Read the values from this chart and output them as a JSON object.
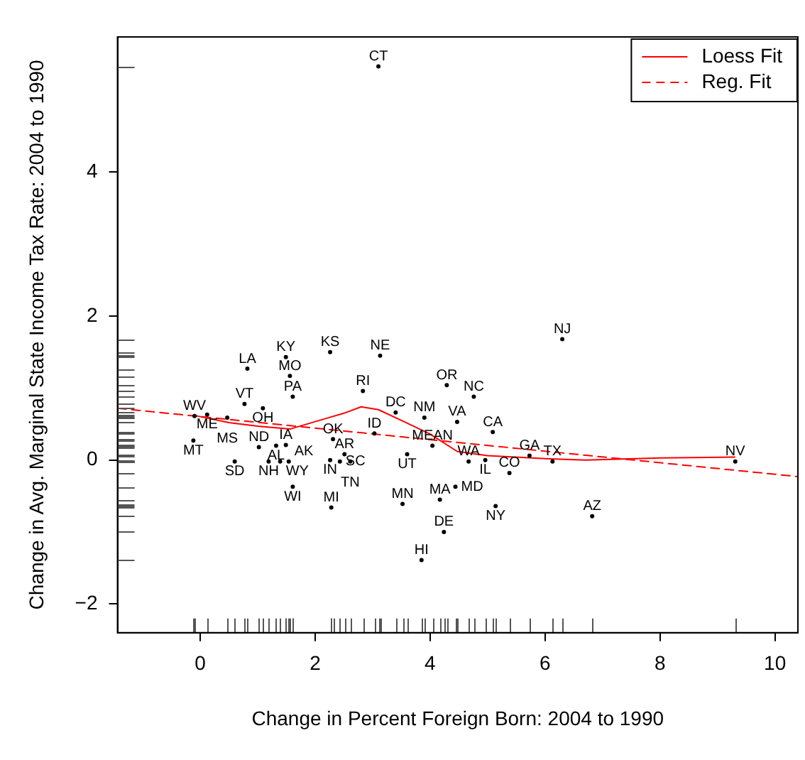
{
  "chart_data": {
    "type": "scatter",
    "xlabel": "Change in Percent Foreign Born: 2004 to 1990",
    "ylabel": "Change in Avg. Marginal State Income Tax Rate: 2004 to 1990",
    "xlim": [
      -1.44,
      10.4
    ],
    "ylim": [
      -2.4,
      5.88
    ],
    "xticks": [
      0,
      2,
      4,
      6,
      8,
      10
    ],
    "yticks": [
      -2,
      0,
      2,
      4
    ],
    "grid": false,
    "legend": "top right",
    "series": [
      {
        "color": "#000000",
        "x": [
          3.1,
          6.3,
          0.82,
          1.49,
          2.26,
          3.13,
          1.56,
          1.61,
          2.83,
          4.29,
          4.76,
          0.77,
          1.09,
          3.4,
          3.9,
          4.47,
          -0.1,
          0.12,
          0.47,
          -0.12,
          5.09,
          3.03,
          2.31,
          1.02,
          1.32,
          1.49,
          4.04,
          3.6,
          2.51,
          0.6,
          1.19,
          1.39,
          1.54,
          2.26,
          2.43,
          2.61,
          4.67,
          4.96,
          5.73,
          6.13,
          9.31,
          5.38,
          1.61,
          2.28,
          3.52,
          4.17,
          4.44,
          5.14,
          6.82,
          4.24,
          3.85
        ],
        "values": [
          5.47,
          1.68,
          1.27,
          1.43,
          1.5,
          1.45,
          1.17,
          0.88,
          0.96,
          1.04,
          0.88,
          0.78,
          0.72,
          0.66,
          0.59,
          0.53,
          0.61,
          0.63,
          0.59,
          0.27,
          0.39,
          0.37,
          0.29,
          0.18,
          0.2,
          0.21,
          0.2,
          0.08,
          0.08,
          -0.02,
          -0.02,
          -0.02,
          -0.02,
          0.0,
          -0.02,
          -0.02,
          -0.02,
          0.0,
          0.06,
          -0.02,
          -0.02,
          -0.18,
          -0.37,
          -0.66,
          -0.61,
          -0.55,
          -0.37,
          -0.64,
          -0.78,
          -1.0,
          -1.39
        ],
        "value_labels": [
          "CT",
          "NJ",
          "LA",
          "KY",
          "KS",
          "NE",
          "MO",
          "PA",
          "RI",
          "OR",
          "NC",
          "VT",
          "OH",
          "DC",
          "NM",
          "VA",
          "WV",
          "ME",
          "MS",
          "MT",
          "CA",
          "ID",
          "OK",
          "ND",
          "AL",
          "IA",
          "MEAN",
          "UT",
          "AR",
          "SD",
          "NH",
          "WY",
          "AK",
          "IN",
          "SC",
          "TN",
          "WA",
          "IL",
          "GA",
          "TX",
          "NV",
          "CO",
          "WI",
          "MI",
          "MN",
          "MA",
          "MD",
          "NY",
          "AZ",
          "DE",
          "HI"
        ]
      },
      {
        "type": "line",
        "name": "Loess Fit",
        "color": "#ff0000",
        "line_style": "solid",
        "x": [
          -0.1,
          0.5,
          1.0,
          1.56,
          2.2,
          2.5,
          2.8,
          3.1,
          3.5,
          4.0,
          4.47,
          5.0,
          6.0,
          6.7,
          8.0,
          9.3
        ],
        "values": [
          0.62,
          0.52,
          0.47,
          0.43,
          0.58,
          0.65,
          0.74,
          0.7,
          0.55,
          0.36,
          0.12,
          0.06,
          0.02,
          0.0,
          0.03,
          0.04
        ]
      },
      {
        "type": "line",
        "name": "Reg. Fit",
        "color": "#ff0000",
        "line_style": "dashed",
        "x": [
          -1.44,
          10.4
        ],
        "values": [
          0.72,
          -0.23
        ]
      }
    ]
  }
}
